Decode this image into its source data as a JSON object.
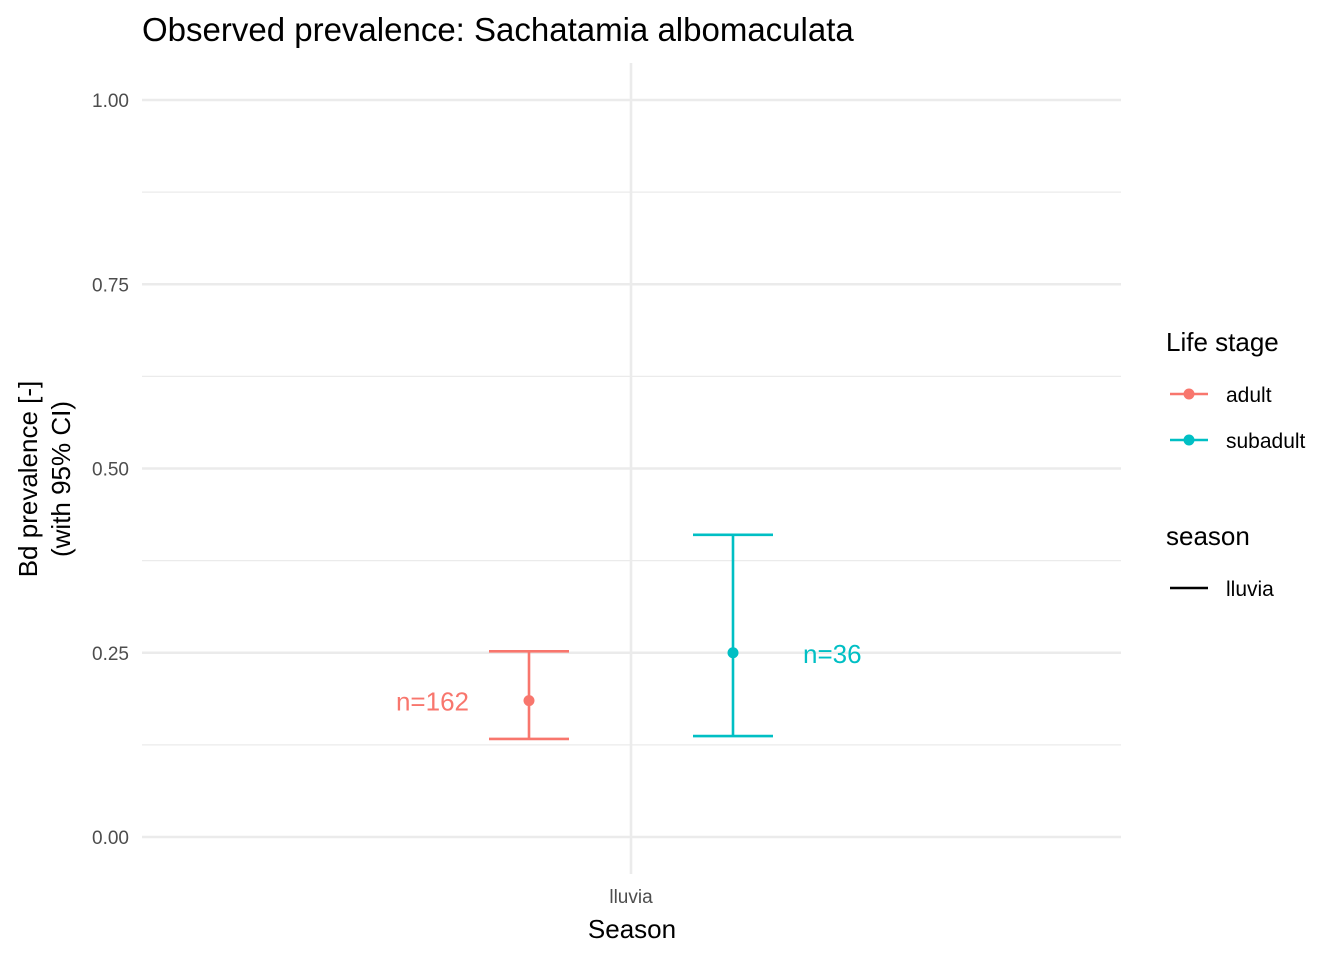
{
  "chart_data": {
    "type": "errorbar",
    "title": "Observed prevalence: Sachatamia albomaculata",
    "xlabel": "Season",
    "ylabel_lines": [
      "Bd prevalence [-]",
      "(with 95% CI)"
    ],
    "categories": [
      "lluvia"
    ],
    "ylim": [
      -0.05,
      1.05
    ],
    "yticks": [
      0,
      0.25,
      0.5,
      0.75,
      1
    ],
    "ytick_labels": [
      "0.00",
      "0.25",
      "0.50",
      "0.75",
      "1.00"
    ],
    "grid": true,
    "legend_position": "right",
    "series": [
      {
        "name": "adult",
        "color": "#F8766D",
        "points": [
          {
            "category": "lluvia",
            "y": 0.185,
            "lower": 0.133,
            "upper": 0.252,
            "n_label": "n=162"
          }
        ]
      },
      {
        "name": "subadult",
        "color": "#00BFC4",
        "points": [
          {
            "category": "lluvia",
            "y": 0.25,
            "lower": 0.137,
            "upper": 0.41,
            "n_label": "n=36"
          }
        ]
      }
    ],
    "legends": [
      {
        "title": "Life stage",
        "entries": [
          "adult",
          "subadult"
        ]
      },
      {
        "title": "season",
        "entries": [
          "lluvia"
        ]
      }
    ]
  }
}
